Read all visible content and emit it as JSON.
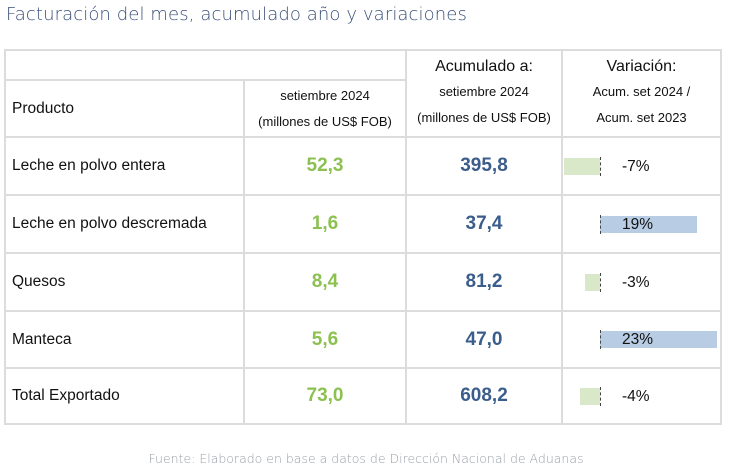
{
  "title": "Facturación del mes, acumulado año y variaciones",
  "header": {
    "product": "Producto",
    "month_line1": "setiembre 2024",
    "month_line2": "(millones de US$ FOB)",
    "acum_title": "Acumulado a:",
    "acum_line1": "setiembre 2024",
    "acum_line2": "(millones de US$ FOB)",
    "var_title": "Variación:",
    "var_line1": "Acum. set 2024 /",
    "var_line2": "Acum. set 2023"
  },
  "rows": [
    {
      "product": "Leche en polvo entera",
      "month": "52,3",
      "acum": "395,8",
      "variation_label": "-7%",
      "variation": -7
    },
    {
      "product": "Leche en polvo descremada",
      "month": "1,6",
      "acum": "37,4",
      "variation_label": "19%",
      "variation": 19
    },
    {
      "product": "Quesos",
      "month": "8,4",
      "acum": "81,2",
      "variation_label": "-3%",
      "variation": -3
    },
    {
      "product": "Manteca",
      "month": "5,6",
      "acum": "47,0",
      "variation_label": "23%",
      "variation": 23
    },
    {
      "product": "Total Exportado",
      "month": "73,0",
      "acum": "608,2",
      "variation_label": "-4%",
      "variation": -4
    }
  ],
  "colors": {
    "green_values": "#8cc152",
    "blue_values": "#3b5d8c",
    "positive_bar": "#b8cce4",
    "negative_bar": "#d8e8c8"
  },
  "source": "Fuente: Elaborado en base a datos de Dirección Nacional de Aduanas"
}
